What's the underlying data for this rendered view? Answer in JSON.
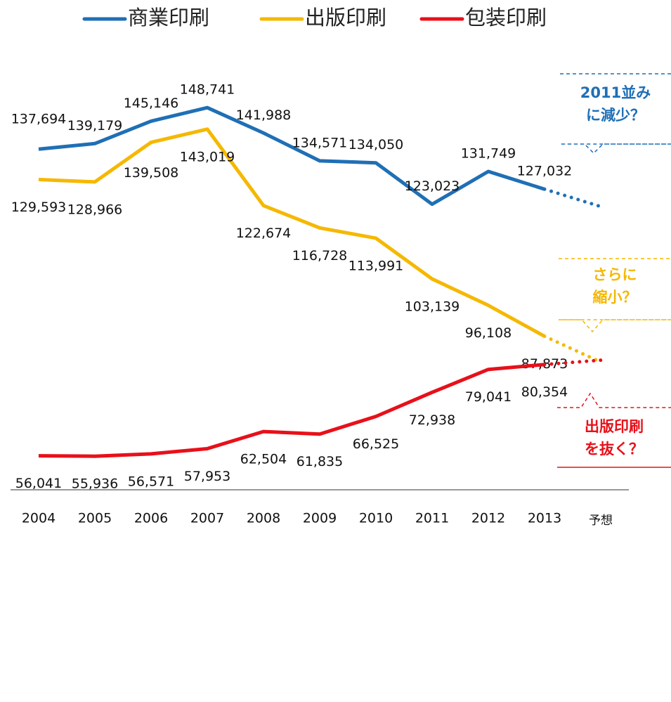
{
  "chart_data": {
    "type": "line",
    "categories": [
      "2004",
      "2005",
      "2006",
      "2007",
      "2008",
      "2009",
      "2010",
      "2011",
      "2012",
      "2013",
      "予想"
    ],
    "ylim": [
      47000,
      160000
    ],
    "series": [
      {
        "name": "商業印刷",
        "color": "#1f6fb5",
        "values": [
          137694,
          139179,
          145146,
          148741,
          141988,
          134571,
          134050,
          123023,
          131749,
          127032,
          122400
        ],
        "value_labels": [
          "137,694",
          "139,179",
          "145,146",
          "148,741",
          "141,988",
          "134,571",
          "134,050",
          "123,023",
          "131,749",
          "127,032",
          null
        ]
      },
      {
        "name": "出版印刷",
        "color": "#f5b800",
        "values": [
          129593,
          128966,
          139508,
          143019,
          122674,
          116728,
          113991,
          103139,
          96108,
          87873,
          81000
        ],
        "value_labels": [
          "129,593",
          "128,966",
          "139,508",
          "143,019",
          "122,674",
          "116,728",
          "113,991",
          "103,139",
          "96,108",
          "87,873",
          null
        ]
      },
      {
        "name": "包装印刷",
        "color": "#e8101a",
        "values": [
          56041,
          55936,
          56571,
          57953,
          62504,
          61835,
          66525,
          72938,
          79041,
          80354,
          81500
        ],
        "value_labels": [
          "56,041",
          "55,936",
          "56,571",
          "57,953",
          "62,504",
          "61,835",
          "66,525",
          "72,938",
          "79,041",
          "80,354",
          null
        ]
      }
    ],
    "annotations": [
      {
        "lines": [
          "2011並み",
          "に減少？"
        ],
        "color": "#1f6fb5"
      },
      {
        "lines": [
          "さらに",
          "縮小？"
        ],
        "color": "#f5b800"
      },
      {
        "lines": [
          "出版印刷",
          "を抜く？"
        ],
        "color": "#e8101a"
      }
    ]
  }
}
